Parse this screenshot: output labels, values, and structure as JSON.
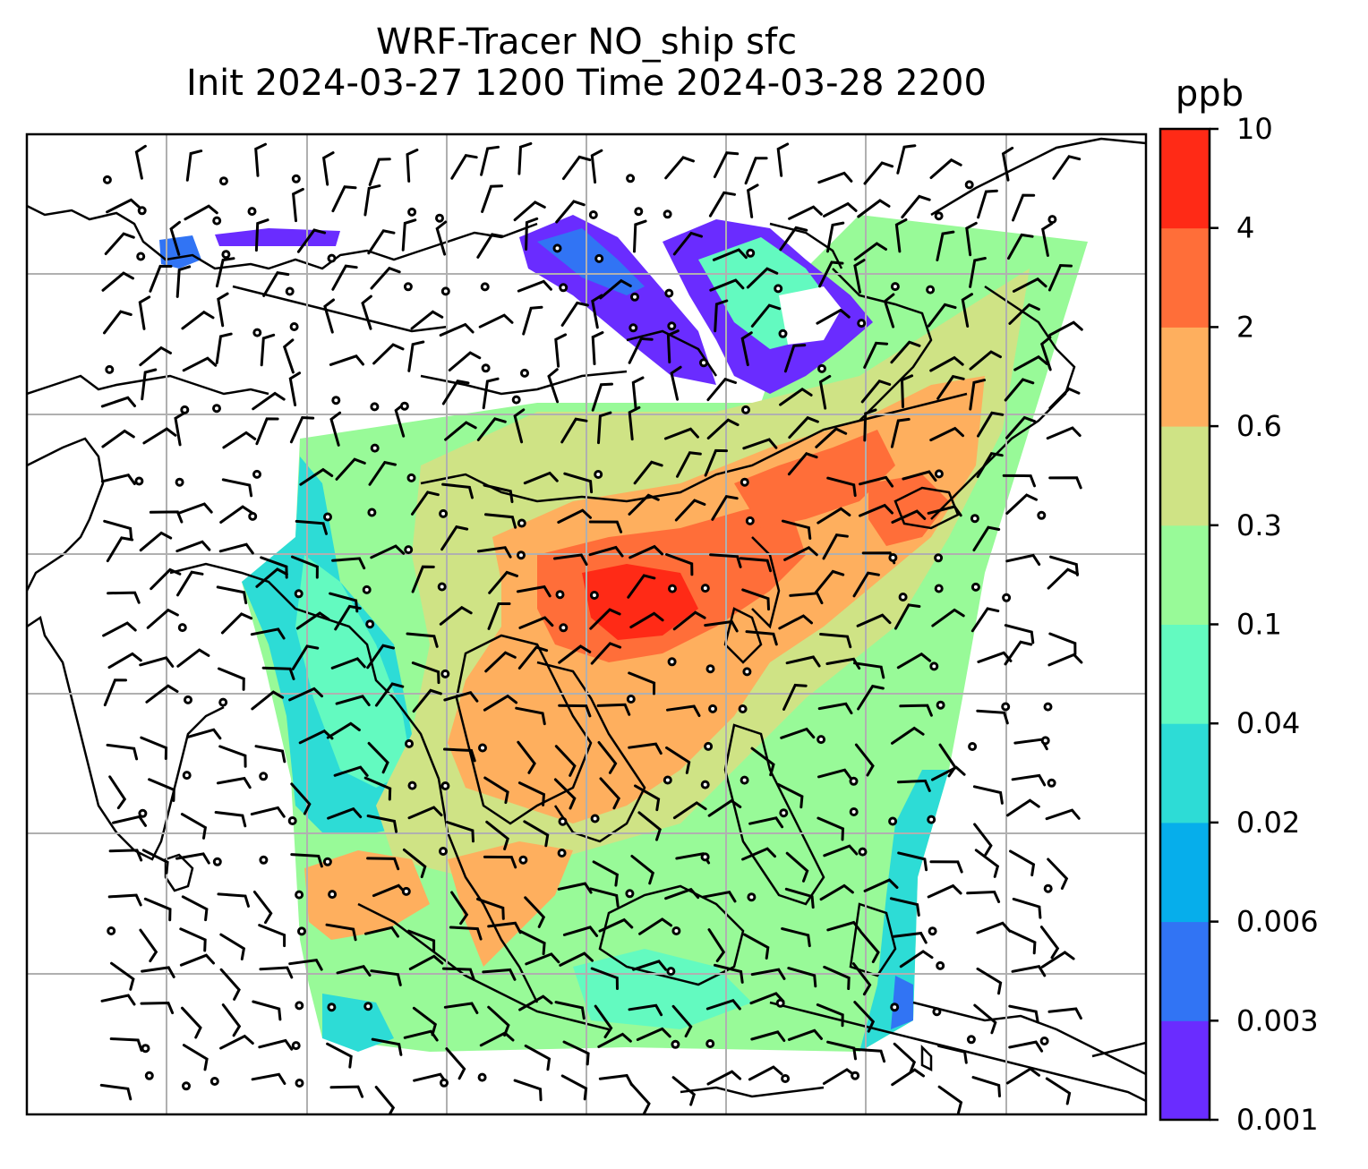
{
  "title": {
    "line1": "WRF-Tracer NO_ship sfc",
    "line2": "Init 2024-03-27 1200 Time 2024-03-28 2200"
  },
  "colorbar": {
    "unit": "ppb",
    "levels": [
      "0.001",
      "0.003",
      "0.006",
      "0.02",
      "0.04",
      "0.1",
      "0.3",
      "0.6",
      "2",
      "4",
      "10"
    ],
    "colors": [
      "#6a2cff",
      "#3174f4",
      "#06aeeb",
      "#2ddcd6",
      "#63fac0",
      "#98fa98",
      "#cfe385",
      "#feaf5e",
      "#ff6e39",
      "#ff2a16"
    ]
  },
  "map": {
    "gridlines": true,
    "vector_field": "wind barbs"
  }
}
